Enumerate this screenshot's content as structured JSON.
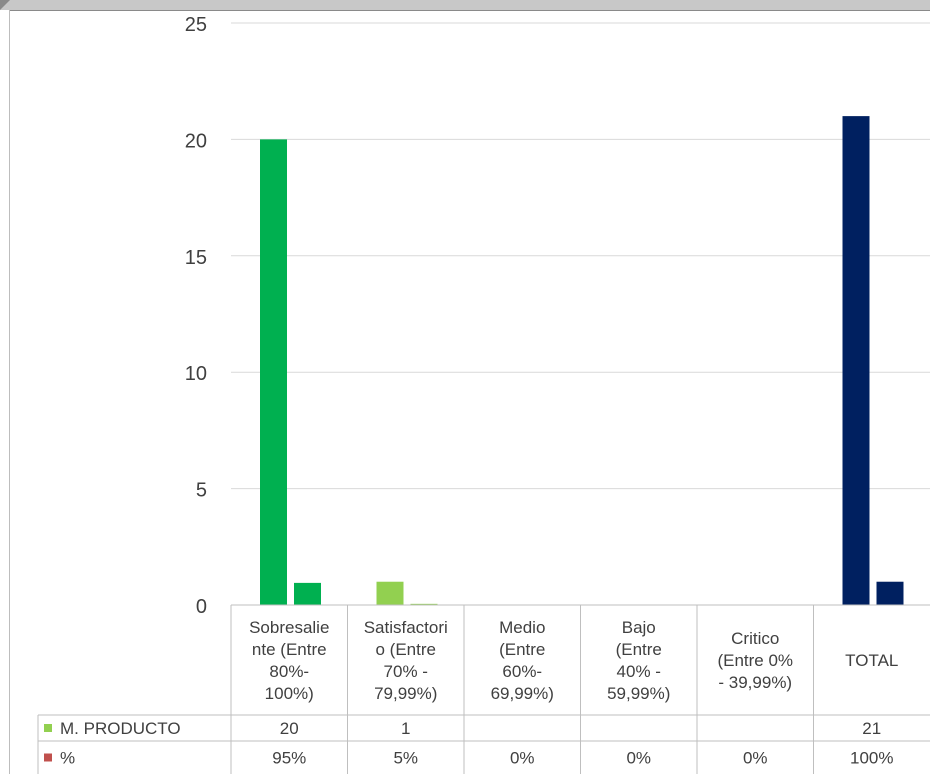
{
  "chart_data": {
    "type": "bar",
    "categories": [
      [
        "Sobresalie",
        "nte  (Entre",
        "80%-",
        "100%)"
      ],
      [
        "Satisfactori",
        "o (Entre",
        "70% -",
        "79,99%)"
      ],
      [
        "Medio",
        "(Entre",
        "60%-",
        "69,99%)"
      ],
      [
        "Bajo",
        "(Entre",
        "40% -",
        "59,99%)"
      ],
      [
        "Critico",
        "(Entre 0%",
        "- 39,99%)"
      ],
      [
        "TOTAL"
      ]
    ],
    "series": [
      {
        "name": "M. PRODUCTO",
        "values": [
          20,
          1,
          null,
          null,
          null,
          21
        ],
        "table_values": [
          "20",
          "1",
          "",
          "",
          "",
          "21"
        ],
        "color": "#92d050",
        "bar_colors": [
          "#00b050",
          "#92d050",
          "#92d050",
          "#92d050",
          "#92d050",
          "#002060"
        ]
      },
      {
        "name": "%",
        "values": [
          0.95,
          0.05,
          0,
          0,
          0,
          1.0
        ],
        "table_values": [
          "95%",
          "5%",
          "0%",
          "0%",
          "0%",
          "100%"
        ],
        "color": "#c0504d",
        "bar_colors": [
          "#00b050",
          "#92d050",
          "#92d050",
          "#92d050",
          "#92d050",
          "#002060"
        ]
      }
    ],
    "yticks": [
      "0",
      "5",
      "10",
      "15",
      "20",
      "25"
    ],
    "ylim": [
      0,
      25
    ],
    "grid": true,
    "legend": "data-table"
  }
}
